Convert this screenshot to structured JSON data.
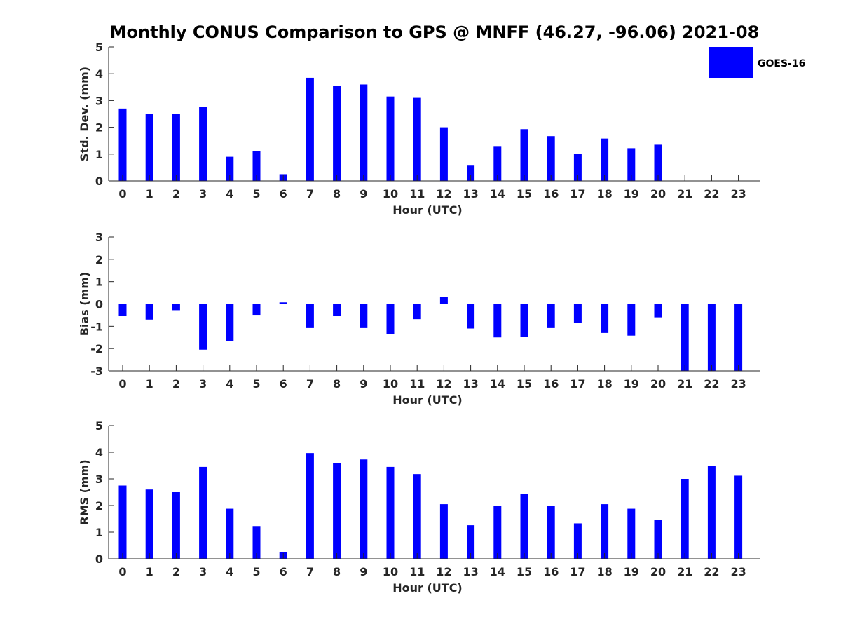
{
  "title": "Monthly CONUS Comparison to GPS @ MNFF (46.27, -96.06) 2021-08",
  "legend": {
    "label": "GOES-16",
    "color": "#0000ff"
  },
  "chart_data": [
    {
      "type": "bar",
      "ylabel": "Std. Dev. (mm)",
      "xlabel": "Hour (UTC)",
      "ylim": [
        0,
        5
      ],
      "yticks": [
        0,
        1,
        2,
        3,
        4,
        5
      ],
      "categories": [
        "0",
        "1",
        "2",
        "3",
        "4",
        "5",
        "6",
        "7",
        "8",
        "9",
        "10",
        "11",
        "12",
        "13",
        "14",
        "15",
        "16",
        "17",
        "18",
        "19",
        "20",
        "21",
        "22",
        "23"
      ],
      "values": [
        2.7,
        2.5,
        2.5,
        2.77,
        0.9,
        1.12,
        0.25,
        3.85,
        3.55,
        3.6,
        3.15,
        3.1,
        2.0,
        0.57,
        1.3,
        1.93,
        1.67,
        1.0,
        1.58,
        1.22,
        1.35,
        null,
        null,
        null
      ]
    },
    {
      "type": "bar",
      "ylabel": "Bias (mm)",
      "xlabel": "Hour (UTC)",
      "ylim": [
        -3,
        3
      ],
      "yticks": [
        -3,
        -2,
        -1,
        0,
        1,
        2,
        3
      ],
      "categories": [
        "0",
        "1",
        "2",
        "3",
        "4",
        "5",
        "6",
        "7",
        "8",
        "9",
        "10",
        "11",
        "12",
        "13",
        "14",
        "15",
        "16",
        "17",
        "18",
        "19",
        "20",
        "21",
        "22",
        "23"
      ],
      "values": [
        -0.55,
        -0.7,
        -0.28,
        -2.05,
        -1.68,
        -0.52,
        0.07,
        -1.08,
        -0.55,
        -1.08,
        -1.35,
        -0.68,
        0.32,
        -1.1,
        -1.5,
        -1.48,
        -1.08,
        -0.85,
        -1.3,
        -1.42,
        -0.6,
        -3.0,
        -3.0,
        -3.0
      ]
    },
    {
      "type": "bar",
      "ylabel": "RMS (mm)",
      "xlabel": "Hour (UTC)",
      "ylim": [
        0,
        5
      ],
      "yticks": [
        0,
        1,
        2,
        3,
        4,
        5
      ],
      "categories": [
        "0",
        "1",
        "2",
        "3",
        "4",
        "5",
        "6",
        "7",
        "8",
        "9",
        "10",
        "11",
        "12",
        "13",
        "14",
        "15",
        "16",
        "17",
        "18",
        "19",
        "20",
        "21",
        "22",
        "23"
      ],
      "values": [
        2.75,
        2.6,
        2.5,
        3.45,
        1.88,
        1.23,
        0.25,
        3.97,
        3.58,
        3.73,
        3.45,
        3.18,
        2.05,
        1.26,
        1.99,
        2.43,
        1.98,
        1.33,
        2.05,
        1.88,
        1.47,
        3.0,
        3.5,
        3.12
      ]
    }
  ]
}
